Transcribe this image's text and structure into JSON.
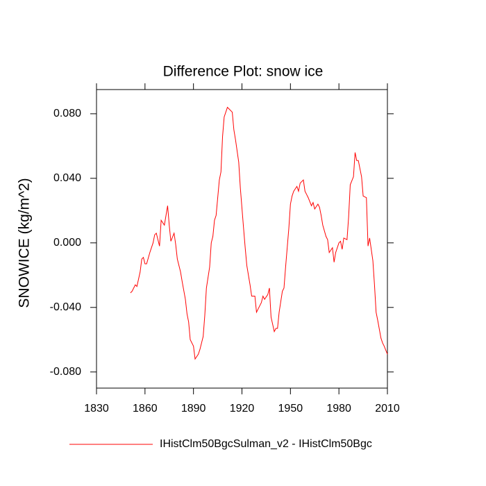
{
  "chart_data": {
    "type": "line",
    "title": "Difference Plot: snow ice",
    "y_label": "SNOWICE  (kg/m^2)",
    "x": [
      1851,
      1852,
      1854,
      1855,
      1857,
      1858,
      1859,
      1860,
      1861,
      1863,
      1865,
      1866,
      1867,
      1869,
      1870,
      1872,
      1874,
      1875,
      1876,
      1878,
      1879,
      1880,
      1882,
      1883,
      1885,
      1886,
      1887,
      1888,
      1890,
      1891,
      1893,
      1894,
      1896,
      1897,
      1898,
      1900,
      1901,
      1902,
      1903,
      1904,
      1906,
      1907,
      1908,
      1909,
      1911,
      1912,
      1914,
      1915,
      1916,
      1918,
      1919,
      1921,
      1922,
      1923,
      1925,
      1926,
      1928,
      1929,
      1931,
      1932,
      1933,
      1934,
      1936,
      1937,
      1938,
      1940,
      1941,
      1942,
      1943,
      1945,
      1946,
      1947,
      1949,
      1950,
      1951,
      1952,
      1954,
      1955,
      1956,
      1958,
      1959,
      1960,
      1961,
      1963,
      1964,
      1965,
      1967,
      1968,
      1969,
      1970,
      1972,
      1973,
      1974,
      1976,
      1977,
      1978,
      1980,
      1981,
      1982,
      1983,
      1985,
      1986,
      1987,
      1989,
      1990,
      1991,
      1992,
      1994,
      1995,
      1997,
      1998,
      1999,
      2001,
      2002,
      2003,
      2004,
      2006,
      2007,
      2008,
      2010
    ],
    "series": [
      {
        "name": "IHistClm50BgcSulman_v2 - IHistClm50Bgc",
        "color": "#ff0000",
        "values": [
          -0.031,
          -0.03,
          -0.026,
          -0.027,
          -0.018,
          -0.01,
          -0.009,
          -0.013,
          -0.013,
          -0.006,
          0.0,
          0.005,
          0.006,
          -0.002,
          0.014,
          0.011,
          0.023,
          0.011,
          0.001,
          0.006,
          -0.001,
          -0.01,
          -0.018,
          -0.024,
          -0.035,
          -0.044,
          -0.049,
          -0.06,
          -0.064,
          -0.072,
          -0.069,
          -0.066,
          -0.058,
          -0.045,
          -0.028,
          -0.015,
          0.0,
          0.004,
          0.014,
          0.017,
          0.039,
          0.044,
          0.066,
          0.078,
          0.084,
          0.083,
          0.081,
          0.07,
          0.064,
          0.05,
          0.034,
          0.009,
          -0.003,
          -0.014,
          -0.026,
          -0.033,
          -0.033,
          -0.043,
          -0.039,
          -0.037,
          -0.033,
          -0.035,
          -0.032,
          -0.028,
          -0.046,
          -0.055,
          -0.053,
          -0.053,
          -0.043,
          -0.03,
          -0.028,
          -0.015,
          0.009,
          0.024,
          0.029,
          0.032,
          0.035,
          0.032,
          0.037,
          0.039,
          0.032,
          0.03,
          0.028,
          0.023,
          0.025,
          0.021,
          0.024,
          0.022,
          0.017,
          0.011,
          0.004,
          0.002,
          -0.006,
          -0.003,
          -0.012,
          -0.006,
          0.0,
          0.001,
          -0.004,
          0.003,
          0.002,
          0.016,
          0.036,
          0.041,
          0.056,
          0.051,
          0.051,
          0.041,
          0.029,
          0.028,
          -0.002,
          0.003,
          -0.011,
          -0.026,
          -0.043,
          -0.048,
          -0.059,
          -0.062,
          -0.064,
          -0.069
        ]
      }
    ],
    "xlim": [
      1830,
      2010
    ],
    "xticks": [
      1830,
      1860,
      1890,
      1920,
      1950,
      1980,
      2010
    ],
    "ylim": [
      -0.09,
      0.095
    ],
    "yticks": [
      {
        "value": -0.08,
        "label": "-0.080"
      },
      {
        "value": -0.04,
        "label": "-0.040"
      },
      {
        "value": 0,
        "label": "0.000"
      },
      {
        "value": 0.04,
        "label": "0.040"
      },
      {
        "value": 0.08,
        "label": "0.080"
      }
    ],
    "grid": false,
    "legend": "bottom"
  }
}
